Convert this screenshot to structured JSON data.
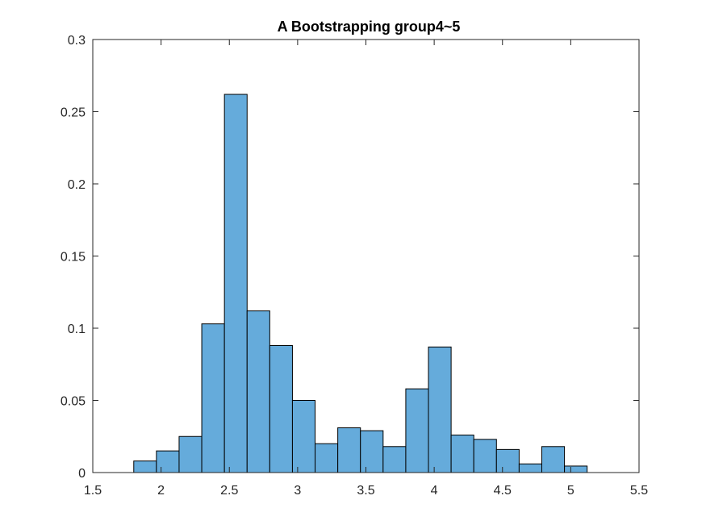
{
  "chart_data": {
    "type": "bar",
    "title": "A Bootstrapping group4~5",
    "xlabel": "",
    "ylabel": "",
    "xlim": [
      1.5,
      5.5
    ],
    "ylim": [
      0,
      0.3
    ],
    "xticks": [
      1.5,
      2,
      2.5,
      3,
      3.5,
      4,
      4.5,
      5,
      5.5
    ],
    "xtick_labels": [
      "1.5",
      "2",
      "2.5",
      "3",
      "3.5",
      "4",
      "4.5",
      "5",
      "5.5"
    ],
    "yticks": [
      0,
      0.05,
      0.1,
      0.15,
      0.2,
      0.25,
      0.3
    ],
    "ytick_labels": [
      "0",
      "0.05",
      "0.1",
      "0.15",
      "0.2",
      "0.25",
      "0.3"
    ],
    "grid": false,
    "bin_edges": [
      1.8,
      1.966,
      2.132,
      2.298,
      2.464,
      2.63,
      2.796,
      2.962,
      3.128,
      3.294,
      3.46,
      3.626,
      3.792,
      3.958,
      4.124,
      4.29,
      4.456,
      4.622,
      4.788,
      4.954,
      5.12
    ],
    "values": [
      0.008,
      0.015,
      0.025,
      0.103,
      0.262,
      0.112,
      0.088,
      0.05,
      0.02,
      0.031,
      0.029,
      0.018,
      0.058,
      0.087,
      0.026,
      0.023,
      0.016,
      0.006,
      0.018,
      0.0045
    ]
  },
  "colors": {
    "bar_fill": "#65abdb",
    "bar_edge": "#000000",
    "axis": "#262626"
  }
}
